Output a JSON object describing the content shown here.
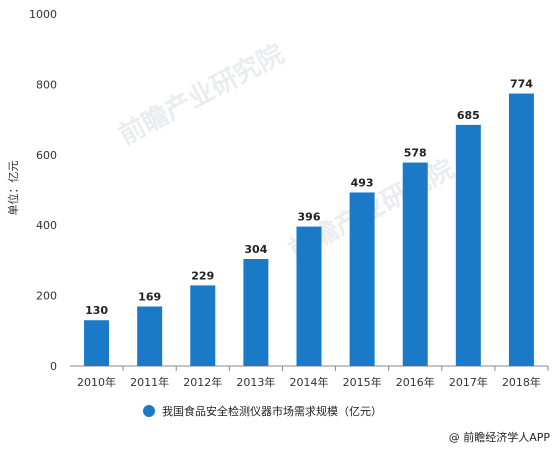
{
  "chart_data": {
    "type": "bar",
    "title": "",
    "xlabel": "",
    "ylabel": "单位：亿元",
    "categories": [
      "2010年",
      "2011年",
      "2012年",
      "2013年",
      "2014年",
      "2015年",
      "2016年",
      "2017年",
      "2018年"
    ],
    "series": [
      {
        "name": "我国食品安全检测仪器市场需求规模（亿元）",
        "values": [
          130,
          169,
          229,
          304,
          396,
          493,
          578,
          685,
          774
        ],
        "color": "#1a7ac7"
      }
    ],
    "ylim": [
      0,
      1000
    ],
    "yticks": [
      0,
      200,
      400,
      600,
      800,
      1000
    ],
    "grid": false,
    "legend_position": "bottom",
    "data_labels": true
  },
  "watermark": "前瞻产业研究院",
  "source": "@ 前瞻经济学人APP",
  "colors": {
    "bar": "#1a7ac7",
    "axis": "#888888",
    "text": "#333333"
  }
}
